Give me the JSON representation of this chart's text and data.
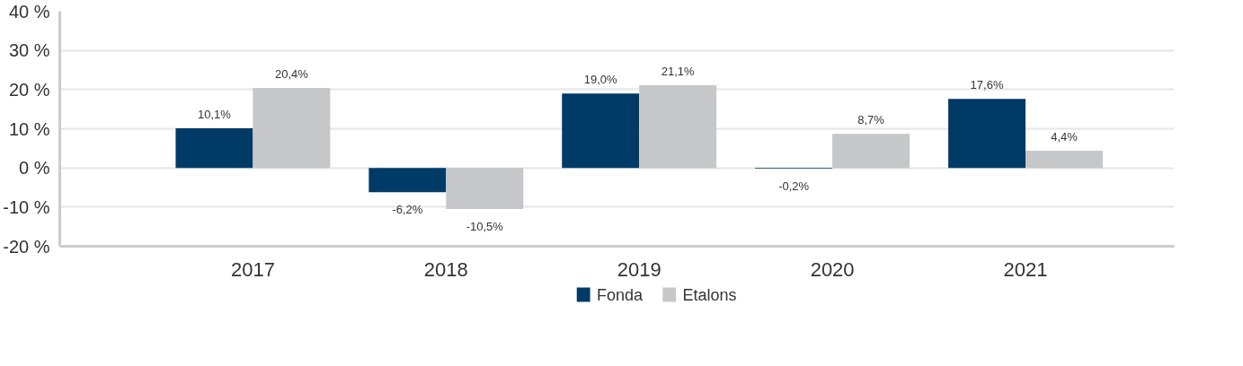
{
  "chart_data": {
    "type": "bar",
    "categories": [
      "2017",
      "2018",
      "2019",
      "2020",
      "2021"
    ],
    "series": [
      {
        "name": "Fonda",
        "color": "#003a66",
        "values": [
          10.1,
          -6.2,
          19.0,
          -0.2,
          17.6
        ],
        "value_labels": [
          "10,1%",
          "-6,2%",
          "19,0%",
          "-0,2%",
          "17,6%"
        ]
      },
      {
        "name": "Etalons",
        "color": "#c6c7c9",
        "values": [
          20.4,
          -10.5,
          21.1,
          8.7,
          4.4
        ],
        "value_labels": [
          "20,4%",
          "-10,5%",
          "21,1%",
          "8,7%",
          "4,4%"
        ]
      }
    ],
    "ylim": [
      -20,
      40
    ],
    "yticks": [
      {
        "value": -20,
        "label": "-20 %"
      },
      {
        "value": -10,
        "label": "-10 %"
      },
      {
        "value": 0,
        "label": "0 %"
      },
      {
        "value": 10,
        "label": "10 %"
      },
      {
        "value": 20,
        "label": "20 %"
      },
      {
        "value": 30,
        "label": "30 %"
      },
      {
        "value": 40,
        "label": "40 %"
      }
    ],
    "grid": "y",
    "legend": "bottom"
  }
}
